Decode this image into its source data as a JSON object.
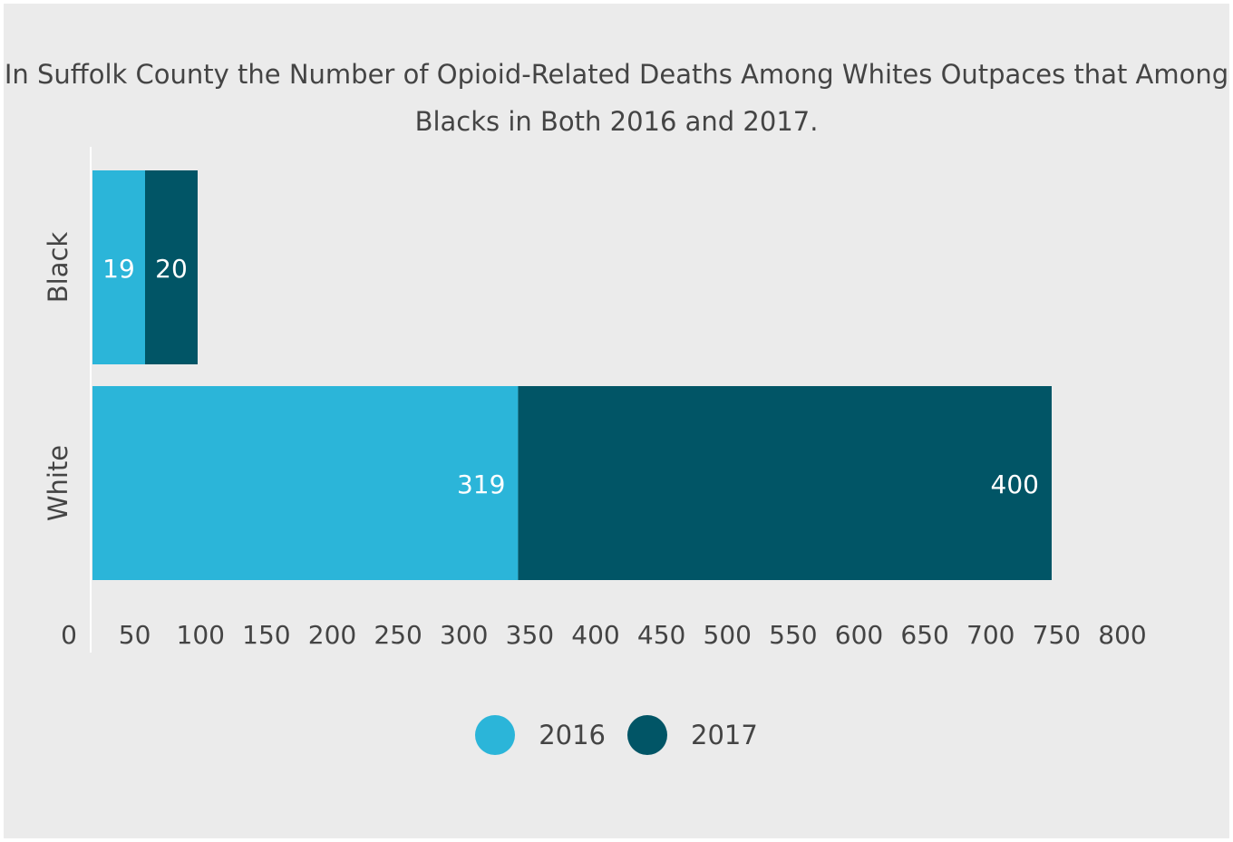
{
  "colors": {
    "series_2016": "#2bb5d9",
    "series_2017": "#015566",
    "background": "#ebebeb",
    "text": "#444444"
  },
  "chart_data": {
    "type": "bar",
    "orientation": "horizontal",
    "stacked": true,
    "title": "In Suffolk County the Number of  Opioid-Related Deaths Among Whites Outpaces that Among Blacks in Both 2016 and 2017.",
    "categories": [
      "Black",
      "White"
    ],
    "series": [
      {
        "name": "2016",
        "values": [
          19,
          319
        ],
        "color": "#2bb5d9"
      },
      {
        "name": "2017",
        "values": [
          20,
          400
        ],
        "color": "#015566"
      }
    ],
    "x_ticks": [
      "0",
      "50",
      "100",
      "150",
      "200",
      "250",
      "300",
      "350",
      "400",
      "450",
      "500",
      "550",
      "600",
      "650",
      "700",
      "750",
      "800"
    ],
    "xlim": [
      0,
      800
    ],
    "grid": false,
    "legend_position": "bottom",
    "xlabel": "",
    "ylabel": ""
  }
}
